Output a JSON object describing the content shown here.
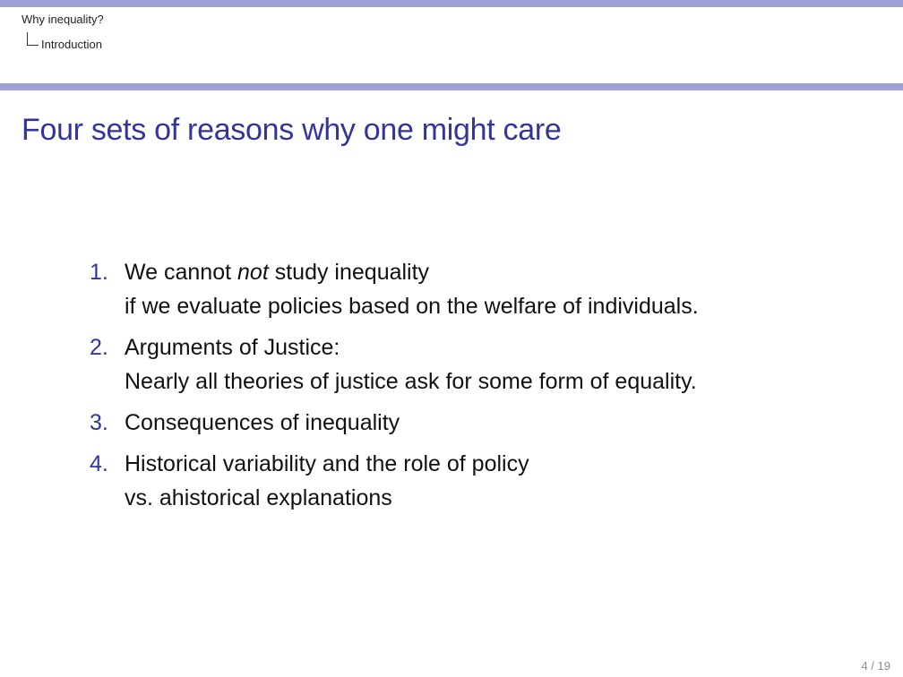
{
  "breadcrumb": {
    "section": "Why inequality?",
    "subsection": "Introduction"
  },
  "frame": {
    "title": "Four sets of reasons why one might care"
  },
  "list": {
    "items": [
      {
        "number": "1.",
        "line1_pre": "We cannot ",
        "line1_em": "not",
        "line1_post": " study inequality",
        "line2": "if we evaluate policies based on the welfare of individuals."
      },
      {
        "number": "2.",
        "line1": "Arguments of Justice:",
        "line2": "Nearly all theories of justice ask for some form of equality."
      },
      {
        "number": "3.",
        "line1": "Consequences of inequality"
      },
      {
        "number": "4.",
        "line1": "Historical variability and the role of policy",
        "line2": "vs. ahistorical explanations"
      }
    ]
  },
  "footer": {
    "page_number": "4 / 19"
  },
  "colors": {
    "accent": "#9fa0d8",
    "title": "#33359a",
    "text": "#111111"
  }
}
